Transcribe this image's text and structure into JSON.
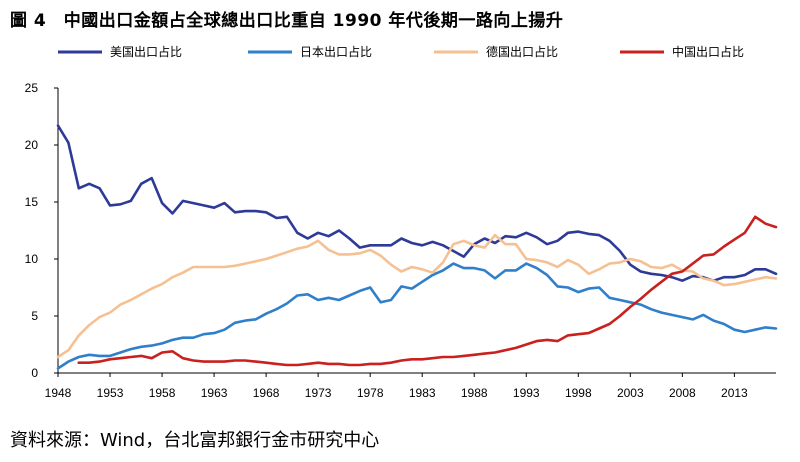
{
  "title": "圖 4　中國出口金額占全球總出口比重自 1990 年代後期一路向上揚升",
  "source": "資料來源：Wind，台北富邦銀行金市研究中心",
  "chart_data": {
    "type": "line",
    "title": "圖 4　中國出口金額占全球總出口比重自 1990 年代後期一路向上揚升",
    "xlabel": "",
    "ylabel": "",
    "xlim": [
      1948,
      2017
    ],
    "ylim": [
      0,
      25
    ],
    "x_ticks": [
      1948,
      1953,
      1958,
      1963,
      1968,
      1973,
      1978,
      1983,
      1988,
      1993,
      1998,
      2003,
      2008,
      2013
    ],
    "y_ticks": [
      0,
      5,
      10,
      15,
      20,
      25
    ],
    "grid": false,
    "legend_position": "top",
    "series": [
      {
        "name": "美国出口占比",
        "color": "#2e3a97",
        "x": [
          1948,
          1949,
          1950,
          1951,
          1952,
          1953,
          1954,
          1955,
          1956,
          1957,
          1958,
          1959,
          1960,
          1961,
          1962,
          1963,
          1964,
          1965,
          1966,
          1967,
          1968,
          1969,
          1970,
          1971,
          1972,
          1973,
          1974,
          1975,
          1976,
          1977,
          1978,
          1979,
          1980,
          1981,
          1982,
          1983,
          1984,
          1985,
          1986,
          1987,
          1988,
          1989,
          1990,
          1991,
          1992,
          1993,
          1994,
          1995,
          1996,
          1997,
          1998,
          1999,
          2000,
          2001,
          2002,
          2003,
          2004,
          2005,
          2006,
          2007,
          2008,
          2009,
          2010,
          2011,
          2012,
          2013,
          2014,
          2015,
          2016,
          2017
        ],
        "values": [
          21.7,
          20.2,
          16.2,
          16.6,
          16.2,
          14.7,
          14.8,
          15.1,
          16.6,
          17.1,
          14.9,
          14.0,
          15.1,
          14.9,
          14.7,
          14.5,
          14.9,
          14.1,
          14.2,
          14.2,
          14.1,
          13.6,
          13.7,
          12.3,
          11.8,
          12.3,
          12.0,
          12.5,
          11.8,
          11.0,
          11.2,
          11.2,
          11.2,
          11.8,
          11.4,
          11.2,
          11.5,
          11.2,
          10.7,
          10.2,
          11.3,
          11.8,
          11.4,
          12.0,
          11.9,
          12.3,
          11.9,
          11.3,
          11.6,
          12.3,
          12.4,
          12.2,
          12.1,
          11.6,
          10.7,
          9.5,
          8.9,
          8.7,
          8.6,
          8.4,
          8.1,
          8.5,
          8.4,
          8.1,
          8.4,
          8.4,
          8.6,
          9.1,
          9.1,
          8.7
        ]
      },
      {
        "name": "日本出口占比",
        "color": "#2f7fca",
        "x": [
          1948,
          1949,
          1950,
          1951,
          1952,
          1953,
          1954,
          1955,
          1956,
          1957,
          1958,
          1959,
          1960,
          1961,
          1962,
          1963,
          1964,
          1965,
          1966,
          1967,
          1968,
          1969,
          1970,
          1971,
          1972,
          1973,
          1974,
          1975,
          1976,
          1977,
          1978,
          1979,
          1980,
          1981,
          1982,
          1983,
          1984,
          1985,
          1986,
          1987,
          1988,
          1989,
          1990,
          1991,
          1992,
          1993,
          1994,
          1995,
          1996,
          1997,
          1998,
          1999,
          2000,
          2001,
          2002,
          2003,
          2004,
          2005,
          2006,
          2007,
          2008,
          2009,
          2010,
          2011,
          2012,
          2013,
          2014,
          2015,
          2016,
          2017
        ],
        "values": [
          0.4,
          1.0,
          1.4,
          1.6,
          1.5,
          1.5,
          1.8,
          2.1,
          2.3,
          2.4,
          2.6,
          2.9,
          3.1,
          3.1,
          3.4,
          3.5,
          3.8,
          4.4,
          4.6,
          4.7,
          5.2,
          5.6,
          6.1,
          6.8,
          6.9,
          6.4,
          6.6,
          6.4,
          6.8,
          7.2,
          7.5,
          6.2,
          6.4,
          7.6,
          7.4,
          8.0,
          8.6,
          9.0,
          9.6,
          9.2,
          9.2,
          9.0,
          8.3,
          9.0,
          9.0,
          9.6,
          9.2,
          8.6,
          7.6,
          7.5,
          7.1,
          7.4,
          7.5,
          6.6,
          6.4,
          6.2,
          6.0,
          5.6,
          5.3,
          5.1,
          4.9,
          4.7,
          5.1,
          4.6,
          4.3,
          3.8,
          3.6,
          3.8,
          4.0,
          3.9
        ]
      },
      {
        "name": "德国出口占比",
        "color": "#f6c192",
        "x": [
          1948,
          1949,
          1950,
          1951,
          1952,
          1953,
          1954,
          1955,
          1956,
          1957,
          1958,
          1959,
          1960,
          1961,
          1962,
          1963,
          1964,
          1965,
          1966,
          1967,
          1968,
          1969,
          1970,
          1971,
          1972,
          1973,
          1974,
          1975,
          1976,
          1977,
          1978,
          1979,
          1980,
          1981,
          1982,
          1983,
          1984,
          1985,
          1986,
          1987,
          1988,
          1989,
          1990,
          1991,
          1992,
          1993,
          1994,
          1995,
          1996,
          1997,
          1998,
          1999,
          2000,
          2001,
          2002,
          2003,
          2004,
          2005,
          2006,
          2007,
          2008,
          2009,
          2010,
          2011,
          2012,
          2013,
          2014,
          2015,
          2016,
          2017
        ],
        "values": [
          1.4,
          2.0,
          3.3,
          4.2,
          4.9,
          5.3,
          6.0,
          6.4,
          6.9,
          7.4,
          7.8,
          8.4,
          8.8,
          9.3,
          9.3,
          9.3,
          9.3,
          9.4,
          9.6,
          9.8,
          10.0,
          10.3,
          10.6,
          10.9,
          11.1,
          11.6,
          10.8,
          10.4,
          10.4,
          10.5,
          10.8,
          10.3,
          9.5,
          8.9,
          9.3,
          9.1,
          8.8,
          9.7,
          11.3,
          11.6,
          11.2,
          11.0,
          12.1,
          11.3,
          11.3,
          10.0,
          9.9,
          9.7,
          9.3,
          9.9,
          9.5,
          8.7,
          9.1,
          9.6,
          9.7,
          10.0,
          9.8,
          9.3,
          9.2,
          9.5,
          9.0,
          8.9,
          8.3,
          8.1,
          7.7,
          7.8,
          8.0,
          8.2,
          8.4,
          8.3
        ]
      },
      {
        "name": "中国出口占比",
        "color": "#c8211e",
        "x": [
          1950,
          1951,
          1952,
          1953,
          1954,
          1955,
          1956,
          1957,
          1958,
          1959,
          1960,
          1961,
          1962,
          1963,
          1964,
          1965,
          1966,
          1967,
          1968,
          1969,
          1970,
          1971,
          1972,
          1973,
          1974,
          1975,
          1976,
          1977,
          1978,
          1979,
          1980,
          1981,
          1982,
          1983,
          1984,
          1985,
          1986,
          1987,
          1988,
          1989,
          1990,
          1991,
          1992,
          1993,
          1994,
          1995,
          1996,
          1997,
          1998,
          1999,
          2000,
          2001,
          2002,
          2003,
          2004,
          2005,
          2006,
          2007,
          2008,
          2009,
          2010,
          2011,
          2012,
          2013,
          2014,
          2015,
          2016,
          2017
        ],
        "values": [
          0.9,
          0.9,
          1.0,
          1.2,
          1.3,
          1.4,
          1.5,
          1.3,
          1.8,
          1.9,
          1.3,
          1.1,
          1.0,
          1.0,
          1.0,
          1.1,
          1.1,
          1.0,
          0.9,
          0.8,
          0.7,
          0.7,
          0.8,
          0.9,
          0.8,
          0.8,
          0.7,
          0.7,
          0.8,
          0.8,
          0.9,
          1.1,
          1.2,
          1.2,
          1.3,
          1.4,
          1.4,
          1.5,
          1.6,
          1.7,
          1.8,
          2.0,
          2.2,
          2.5,
          2.8,
          2.9,
          2.8,
          3.3,
          3.4,
          3.5,
          3.9,
          4.3,
          5.0,
          5.8,
          6.5,
          7.3,
          8.0,
          8.7,
          8.9,
          9.6,
          10.3,
          10.4,
          11.1,
          11.7,
          12.3,
          13.7,
          13.1,
          12.8
        ]
      }
    ]
  }
}
